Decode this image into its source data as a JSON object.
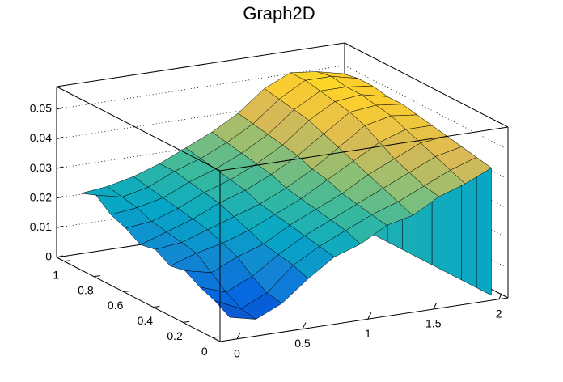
{
  "chart_data": {
    "type": "surface",
    "title": "Graph2D",
    "x": [
      0,
      0.2,
      0.4,
      0.6,
      0.8,
      1,
      1.2,
      1.4,
      1.6,
      1.8,
      2
    ],
    "y": [
      0,
      0.1,
      0.2,
      0.3,
      0.4,
      0.5,
      0.6,
      0.7,
      0.8,
      0.9,
      1
    ],
    "z": [
      [
        0.006,
        0.004,
        0.008,
        0.015,
        0.021,
        0.024,
        0.029,
        0.031,
        0.036,
        0.039,
        0.043
      ],
      [
        0.009,
        0.005,
        0.009,
        0.017,
        0.022,
        0.026,
        0.03,
        0.033,
        0.037,
        0.041,
        0.044
      ],
      [
        0.011,
        0.008,
        0.012,
        0.018,
        0.023,
        0.027,
        0.031,
        0.035,
        0.039,
        0.043,
        0.045
      ],
      [
        0.014,
        0.012,
        0.016,
        0.019,
        0.024,
        0.028,
        0.032,
        0.037,
        0.041,
        0.045,
        0.046
      ],
      [
        0.013,
        0.016,
        0.018,
        0.021,
        0.025,
        0.029,
        0.034,
        0.039,
        0.044,
        0.047,
        0.047
      ],
      [
        0.016,
        0.017,
        0.02,
        0.023,
        0.026,
        0.03,
        0.035,
        0.041,
        0.047,
        0.049,
        0.048
      ],
      [
        0.015,
        0.018,
        0.021,
        0.025,
        0.028,
        0.032,
        0.037,
        0.043,
        0.049,
        0.05,
        0.049
      ],
      [
        0.018,
        0.019,
        0.022,
        0.026,
        0.029,
        0.033,
        0.038,
        0.045,
        0.05,
        0.051,
        0.049
      ],
      [
        0.02,
        0.021,
        0.023,
        0.027,
        0.03,
        0.034,
        0.039,
        0.046,
        0.051,
        0.051,
        0.05
      ],
      [
        0.024,
        0.022,
        0.024,
        0.028,
        0.031,
        0.035,
        0.04,
        0.047,
        0.052,
        0.052,
        0.05
      ],
      [
        0.022,
        0.023,
        0.025,
        0.028,
        0.032,
        0.036,
        0.041,
        0.048,
        0.052,
        0.051,
        0.049
      ]
    ],
    "xlim": [
      -0.13,
      2.07
    ],
    "xticks": [
      0,
      0.5,
      1,
      1.5,
      2
    ],
    "ylim": [
      -0.05,
      1.05
    ],
    "yticks": [
      0,
      0.2,
      0.4,
      0.6,
      0.8,
      1
    ],
    "zlim": [
      0,
      0.0576
    ],
    "zticks": [
      0,
      0.01,
      0.02,
      0.03,
      0.04,
      0.05
    ],
    "grid": true,
    "palette": [
      "#352a87",
      "#0363e1",
      "#1485d4",
      "#06a7c6",
      "#38b99e",
      "#92bf73",
      "#d9ba56",
      "#fcce2e",
      "#f9fb0e"
    ]
  }
}
